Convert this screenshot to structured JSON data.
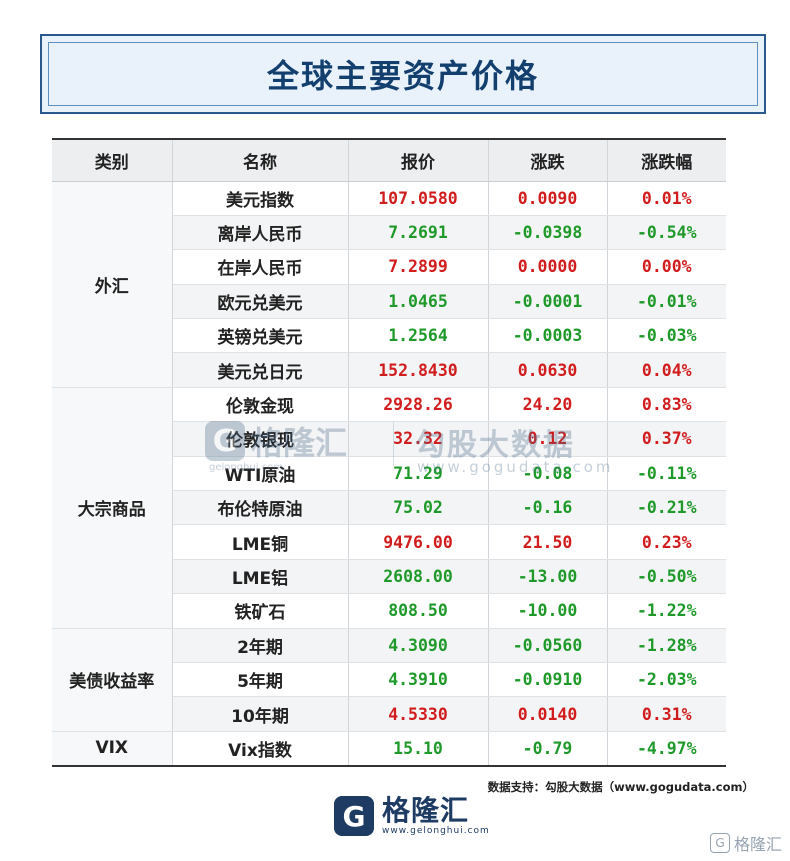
{
  "title": "全球主要资产价格",
  "headers": [
    "类别",
    "名称",
    "报价",
    "涨跌",
    "涨跌幅"
  ],
  "categories": {
    "fx": "外汇",
    "commodities": "大宗商品",
    "treasury": "美债收益率",
    "vix": "VIX"
  },
  "rows": [
    {
      "name": "美元指数",
      "price": "107.0580",
      "change": "0.0090",
      "pct": "0.01%"
    },
    {
      "name": "离岸人民币",
      "price": "7.2691",
      "change": "-0.0398",
      "pct": "-0.54%"
    },
    {
      "name": "在岸人民币",
      "price": "7.2899",
      "change": "0.0000",
      "pct": "0.00%"
    },
    {
      "name": "欧元兑美元",
      "price": "1.0465",
      "change": "-0.0001",
      "pct": "-0.01%"
    },
    {
      "name": "英镑兑美元",
      "price": "1.2564",
      "change": "-0.0003",
      "pct": "-0.03%"
    },
    {
      "name": "美元兑日元",
      "price": "152.8430",
      "change": "0.0630",
      "pct": "0.04%"
    },
    {
      "name": "伦敦金现",
      "price": "2928.26",
      "change": "24.20",
      "pct": "0.83%"
    },
    {
      "name": "伦敦银现",
      "price": "32.32",
      "change": "0.12",
      "pct": "0.37%"
    },
    {
      "name": "WTI原油",
      "price": "71.29",
      "change": "-0.08",
      "pct": "-0.11%"
    },
    {
      "name": "布伦特原油",
      "price": "75.02",
      "change": "-0.16",
      "pct": "-0.21%"
    },
    {
      "name": "LME铜",
      "price": "9476.00",
      "change": "21.50",
      "pct": "0.23%"
    },
    {
      "name": "LME铝",
      "price": "2608.00",
      "change": "-13.00",
      "pct": "-0.50%"
    },
    {
      "name": "铁矿石",
      "price": "808.50",
      "change": "-10.00",
      "pct": "-1.22%"
    },
    {
      "name": "2年期",
      "price": "4.3090",
      "change": "-0.0560",
      "pct": "-1.28%"
    },
    {
      "name": "5年期",
      "price": "4.3910",
      "change": "-0.0910",
      "pct": "-2.03%"
    },
    {
      "name": "10年期",
      "price": "4.5330",
      "change": "0.0140",
      "pct": "0.31%"
    },
    {
      "name": "Vix指数",
      "price": "15.10",
      "change": "-0.79",
      "pct": "-4.97%"
    }
  ],
  "watermark": {
    "brand": "格隆汇",
    "brand_url": "gelonghui.com",
    "right_text": "勾股大数据",
    "right_url": "www.gogudata.com"
  },
  "source": "数据支持：勾股大数据（www.gogudata.com）",
  "footer": {
    "brand": "格隆汇",
    "url": "www.gelonghui.com"
  },
  "corner": "格隆汇",
  "colors": {
    "up": "#d11d1d",
    "down": "#1f9a2a",
    "title": "#123f6e"
  }
}
